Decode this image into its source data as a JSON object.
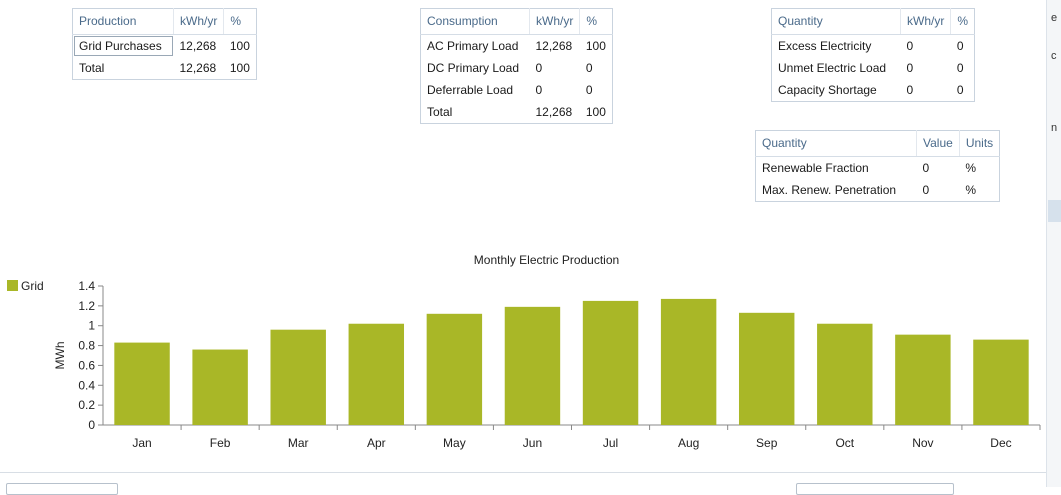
{
  "production_table": {
    "headers": [
      "Production",
      "kWh/yr",
      "%"
    ],
    "rows": [
      [
        "Grid Purchases",
        "12,268",
        "100"
      ],
      [
        "Total",
        "12,268",
        "100"
      ]
    ]
  },
  "consumption_table": {
    "headers": [
      "Consumption",
      "kWh/yr",
      "%"
    ],
    "rows": [
      [
        "AC Primary Load",
        "12,268",
        "100"
      ],
      [
        "DC Primary Load",
        "0",
        "0"
      ],
      [
        "Deferrable Load",
        "0",
        "0"
      ],
      [
        "Total",
        "12,268",
        "100"
      ]
    ]
  },
  "quantity_table": {
    "headers": [
      "Quantity",
      "kWh/yr",
      "%"
    ],
    "rows": [
      [
        "Excess Electricity",
        "0",
        "0"
      ],
      [
        "Unmet Electric Load",
        "0",
        "0"
      ],
      [
        "Capacity Shortage",
        "0",
        "0"
      ]
    ]
  },
  "renewable_table": {
    "headers": [
      "Quantity",
      "Value",
      "Units"
    ],
    "rows": [
      [
        "Renewable Fraction",
        "0",
        "%"
      ],
      [
        "Max. Renew. Penetration",
        "0",
        "%"
      ]
    ]
  },
  "right_edge": {
    "glyphs": [
      "e",
      "c",
      "n"
    ]
  },
  "colors": {
    "grid_bar": "#a9b727",
    "axis": "#888888",
    "header_text": "#4a6a8a"
  },
  "chart_data": {
    "type": "bar",
    "title": "Monthly Electric Production",
    "xlabel": "",
    "ylabel": "MWh",
    "categories": [
      "Jan",
      "Feb",
      "Mar",
      "Apr",
      "May",
      "Jun",
      "Jul",
      "Aug",
      "Sep",
      "Oct",
      "Nov",
      "Dec"
    ],
    "series": [
      {
        "name": "Grid",
        "color": "#a9b727",
        "values": [
          0.83,
          0.76,
          0.96,
          1.02,
          1.12,
          1.19,
          1.25,
          1.27,
          1.13,
          1.02,
          0.91,
          0.86
        ]
      }
    ],
    "ylim": [
      0,
      1.4
    ],
    "yticks": [
      "0",
      "0.2",
      "0.4",
      "0.6",
      "0.8",
      "1",
      "1.2",
      "1.4"
    ],
    "grid": false,
    "legend": "left"
  }
}
